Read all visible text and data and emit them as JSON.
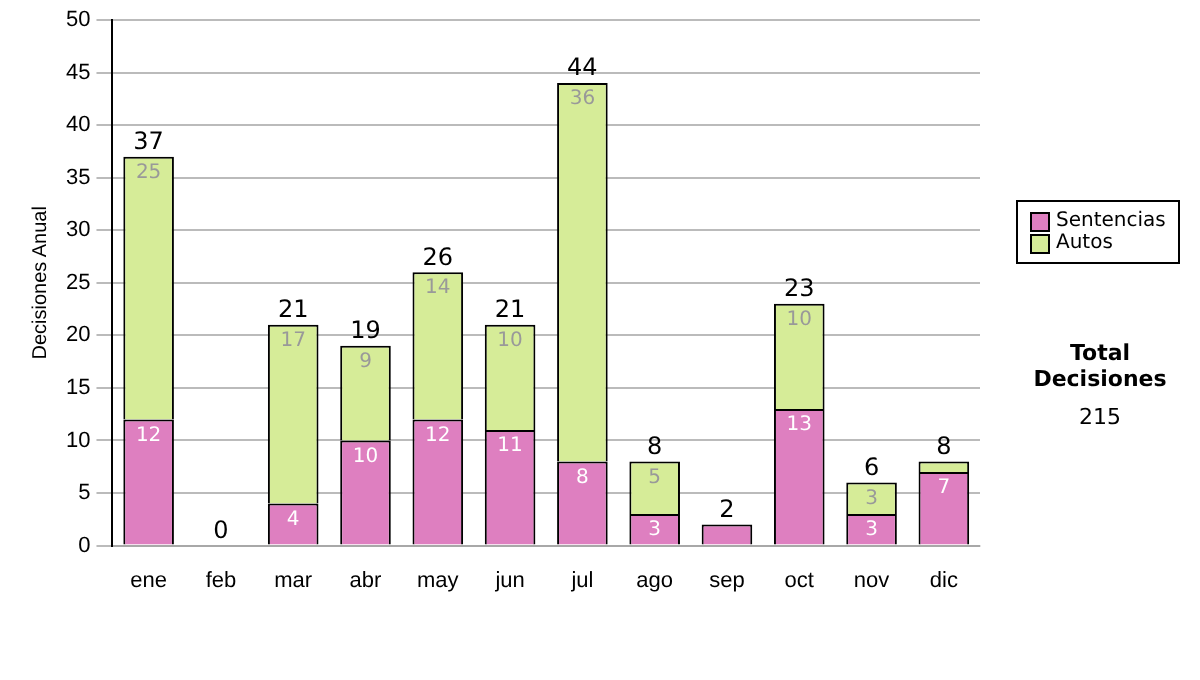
{
  "chart_data": {
    "type": "bar",
    "stacked": true,
    "ylabel": "Decisiones Anual",
    "categories": [
      "ene",
      "feb",
      "mar",
      "abr",
      "may",
      "jun",
      "jul",
      "ago",
      "sep",
      "oct",
      "nov",
      "dic"
    ],
    "series": [
      {
        "name": "Sentencias",
        "color": "#de7fc0",
        "values": [
          12,
          0,
          4,
          10,
          12,
          11,
          8,
          3,
          2,
          13,
          3,
          7
        ],
        "value_labels": [
          "12",
          null,
          "4",
          "10",
          "12",
          "11",
          "8",
          "3",
          null,
          "13",
          "3",
          "7"
        ]
      },
      {
        "name": "Autos",
        "color": "#d6ec98",
        "values": [
          25,
          0,
          17,
          9,
          14,
          10,
          36,
          5,
          0,
          10,
          3,
          1
        ],
        "value_labels": [
          "25",
          null,
          "17",
          "9",
          "14",
          "10",
          "36",
          "5",
          null,
          "10",
          "3",
          null
        ]
      }
    ],
    "totals": [
      "37",
      "0",
      "21",
      "19",
      "26",
      "21",
      "44",
      "8",
      "2",
      "23",
      "6",
      "8"
    ],
    "ylim": [
      0,
      50
    ],
    "yticks": [
      0,
      5,
      10,
      15,
      20,
      25,
      30,
      35,
      40,
      45,
      50
    ],
    "grid": "y",
    "legend": "right",
    "annotations": [
      "Total Decisiones",
      "215"
    ]
  }
}
